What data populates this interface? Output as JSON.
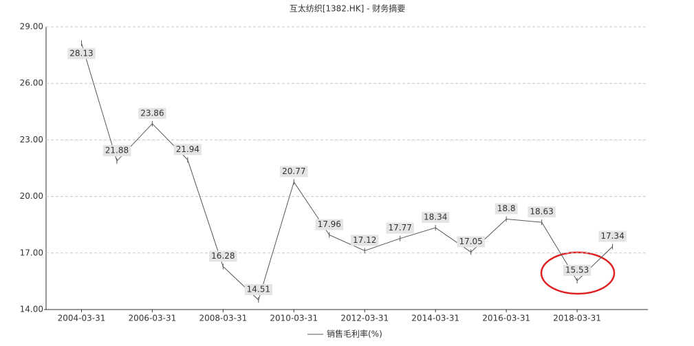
{
  "chart_data": {
    "type": "line",
    "title": "互太纺织[1382.HK] - 财务摘要",
    "categories": [
      "2004-03-31",
      null,
      "2006-03-31",
      null,
      "2008-03-31",
      null,
      "2010-03-31",
      null,
      "2012-03-31",
      null,
      "2014-03-31",
      null,
      "2016-03-31",
      null,
      "2018-03-31",
      null
    ],
    "series": [
      {
        "name": "销售毛利率(%)",
        "color": "#555555",
        "values": [
          28.13,
          21.88,
          23.86,
          21.94,
          16.28,
          14.51,
          20.77,
          17.96,
          17.12,
          17.77,
          18.34,
          17.05,
          18.8,
          18.63,
          15.53,
          17.34
        ]
      }
    ],
    "ylim": [
      14,
      29
    ],
    "yticks": [
      {
        "value": 14,
        "label": "14.00"
      },
      {
        "value": 17,
        "label": "17.00"
      },
      {
        "value": 20,
        "label": "20.00"
      },
      {
        "value": 23,
        "label": "23.00"
      },
      {
        "value": 26,
        "label": "26.00"
      },
      {
        "value": 29,
        "label": "29.00"
      }
    ],
    "grid": true
  }
}
